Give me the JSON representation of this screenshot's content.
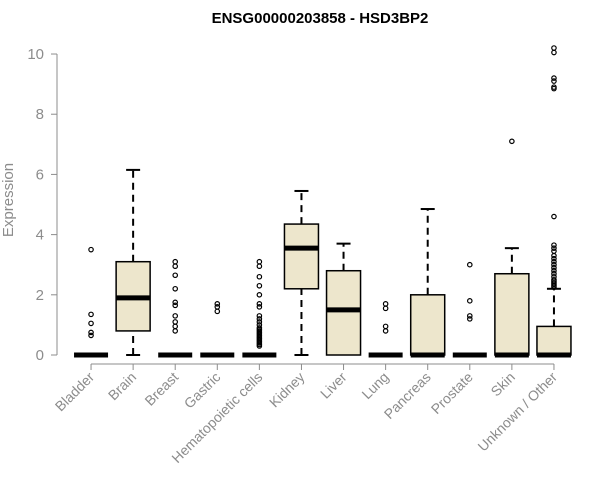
{
  "chart_data": {
    "type": "box",
    "title": "ENSG00000203858 - HSD3BP2",
    "xlabel": "",
    "ylabel": "Expression",
    "ylim": [
      0,
      10.2
    ],
    "yticks": [
      0,
      2,
      4,
      6,
      8,
      10
    ],
    "categories": [
      "Bladder",
      "Brain",
      "Breast",
      "Gastric",
      "Hematopoietic cells",
      "Kidney",
      "Liver",
      "Lung",
      "Pancreas",
      "Prostate",
      "Skin",
      "Unknown / Other"
    ],
    "box_color": "#ede6cc",
    "boxes": [
      {
        "q1": 0,
        "median": 0,
        "q3": 0,
        "whisker_low": 0,
        "whisker_high": 0,
        "outliers": [
          3.5,
          1.35,
          1.05,
          0.75,
          0.65
        ]
      },
      {
        "q1": 0.8,
        "median": 1.9,
        "q3": 3.1,
        "whisker_low": 0,
        "whisker_high": 6.15,
        "outliers": []
      },
      {
        "q1": 0,
        "median": 0,
        "q3": 0,
        "whisker_low": 0,
        "whisker_high": 0,
        "outliers": [
          3.1,
          2.95,
          2.65,
          2.2,
          1.75,
          1.65,
          1.3,
          1.1,
          0.95,
          0.8
        ]
      },
      {
        "q1": 0,
        "median": 0,
        "q3": 0,
        "whisker_low": 0,
        "whisker_high": 0,
        "outliers": [
          1.7,
          1.6,
          1.45
        ]
      },
      {
        "q1": 0,
        "median": 0,
        "q3": 0,
        "whisker_low": 0,
        "whisker_high": 0,
        "outliers": [
          3.1,
          2.95,
          2.6,
          2.3,
          2.0,
          1.7,
          1.6,
          1.3,
          1.2,
          1.1,
          1.0,
          0.9,
          0.85,
          0.8,
          0.75,
          0.7,
          0.65,
          0.6,
          0.55,
          0.5,
          0.45,
          0.4,
          0.35,
          0.3
        ]
      },
      {
        "q1": 2.2,
        "median": 3.55,
        "q3": 4.35,
        "whisker_low": 0,
        "whisker_high": 5.45,
        "outliers": []
      },
      {
        "q1": 0,
        "median": 1.5,
        "q3": 2.8,
        "whisker_low": 0,
        "whisker_high": 3.7,
        "outliers": []
      },
      {
        "q1": 0,
        "median": 0,
        "q3": 0,
        "whisker_low": 0,
        "whisker_high": 0,
        "outliers": [
          1.7,
          1.55,
          0.95,
          0.8
        ]
      },
      {
        "q1": 0,
        "median": 0,
        "q3": 2.0,
        "whisker_low": 0,
        "whisker_high": 4.85,
        "outliers": []
      },
      {
        "q1": 0,
        "median": 0,
        "q3": 0,
        "whisker_low": 0,
        "whisker_high": 0,
        "outliers": [
          3.0,
          1.8,
          1.3,
          1.2
        ]
      },
      {
        "q1": 0,
        "median": 0,
        "q3": 2.7,
        "whisker_low": 0,
        "whisker_high": 3.55,
        "outliers": [
          7.1
        ]
      },
      {
        "q1": 0,
        "median": 0,
        "q3": 0.95,
        "whisker_low": 0,
        "whisker_high": 2.2,
        "outliers": [
          10.2,
          10.05,
          9.2,
          9.1,
          8.9,
          8.85,
          4.6,
          3.65,
          3.55,
          3.45,
          3.3,
          3.2,
          3.1,
          3.0,
          2.9,
          2.8,
          2.7,
          2.6,
          2.5,
          2.45,
          2.4,
          2.35,
          2.3,
          2.25
        ]
      }
    ]
  }
}
